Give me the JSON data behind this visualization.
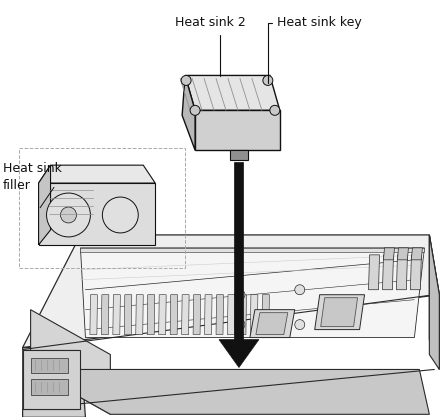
{
  "background_color": "#ffffff",
  "labels": {
    "heat_sink_2": "Heat sink 2",
    "heat_sink_key": "Heat sink key",
    "heat_sink_filler": "Heat sink\nfiller"
  },
  "line_color": "#2a2a2a",
  "black": "#111111",
  "gray_light": "#e8e8e8",
  "gray_mid": "#c0c0c0",
  "gray_dark": "#808080",
  "dashed_color": "#999999",
  "arrow_shaft_color": "#1a1a1a",
  "label_fontsize": 9,
  "figsize": [
    4.44,
    4.18
  ],
  "dpi": 100
}
